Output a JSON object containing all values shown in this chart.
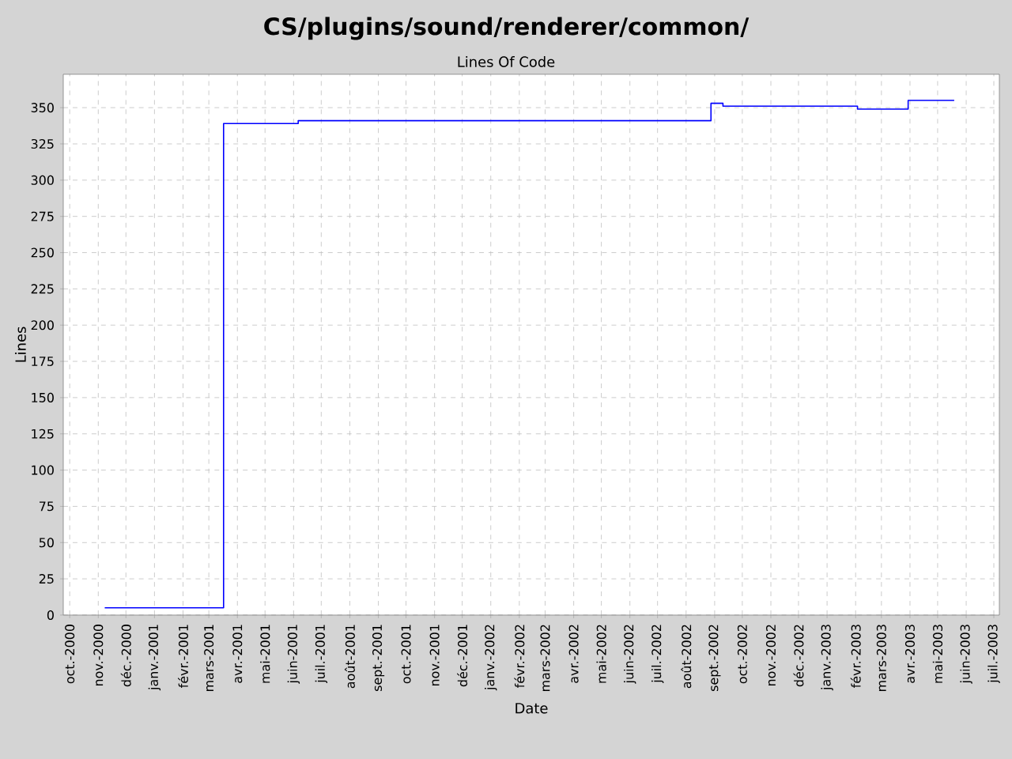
{
  "chart_data": {
    "type": "step",
    "title": "CS/plugins/sound/renderer/common/",
    "subtitle": "Lines Of Code",
    "xlabel": "Date",
    "ylabel": "Lines",
    "x": [
      "2000-11-08",
      "2001-03-17",
      "2001-06-06",
      "2002-08-28",
      "2002-09-10",
      "2003-02-03",
      "2003-03-30",
      "2003-05-19"
    ],
    "series": [
      {
        "color": "#0000ff",
        "values": [
          5,
          339,
          341,
          353,
          351,
          349,
          355,
          355
        ]
      }
    ],
    "xlim": [
      "2000-09-24",
      "2003-07-07"
    ],
    "ylim": [
      0,
      373
    ],
    "yticks": [
      0,
      25,
      50,
      75,
      100,
      125,
      150,
      175,
      200,
      225,
      250,
      275,
      300,
      325,
      350
    ],
    "xticks": [
      {
        "value": "2000-10",
        "label": "oct.-2000"
      },
      {
        "value": "2000-11",
        "label": "nov.-2000"
      },
      {
        "value": "2000-12",
        "label": "déc.-2000"
      },
      {
        "value": "2001-01",
        "label": "janv.-2001"
      },
      {
        "value": "2001-02",
        "label": "févr.-2001"
      },
      {
        "value": "2001-03",
        "label": "mars-2001"
      },
      {
        "value": "2001-04",
        "label": "avr.-2001"
      },
      {
        "value": "2001-05",
        "label": "mai-2001"
      },
      {
        "value": "2001-06",
        "label": "juin-2001"
      },
      {
        "value": "2001-07",
        "label": "juil.-2001"
      },
      {
        "value": "2001-08",
        "label": "août-2001"
      },
      {
        "value": "2001-09",
        "label": "sept.-2001"
      },
      {
        "value": "2001-10",
        "label": "oct.-2001"
      },
      {
        "value": "2001-11",
        "label": "nov.-2001"
      },
      {
        "value": "2001-12",
        "label": "déc.-2001"
      },
      {
        "value": "2002-01",
        "label": "janv.-2002"
      },
      {
        "value": "2002-02",
        "label": "févr.-2002"
      },
      {
        "value": "2002-03",
        "label": "mars-2002"
      },
      {
        "value": "2002-04",
        "label": "avr.-2002"
      },
      {
        "value": "2002-05",
        "label": "mai-2002"
      },
      {
        "value": "2002-06",
        "label": "juin-2002"
      },
      {
        "value": "2002-07",
        "label": "juil.-2002"
      },
      {
        "value": "2002-08",
        "label": "août-2002"
      },
      {
        "value": "2002-09",
        "label": "sept.-2002"
      },
      {
        "value": "2002-10",
        "label": "oct.-2002"
      },
      {
        "value": "2002-11",
        "label": "nov.-2002"
      },
      {
        "value": "2002-12",
        "label": "déc.-2002"
      },
      {
        "value": "2003-01",
        "label": "janv.-2003"
      },
      {
        "value": "2003-02",
        "label": "févr.-2003"
      },
      {
        "value": "2003-03",
        "label": "mars-2003"
      },
      {
        "value": "2003-04",
        "label": "avr.-2003"
      },
      {
        "value": "2003-05",
        "label": "mai-2003"
      },
      {
        "value": "2003-06",
        "label": "juin-2003"
      },
      {
        "value": "2003-07",
        "label": "juil.-2003"
      }
    ],
    "grid": true
  }
}
